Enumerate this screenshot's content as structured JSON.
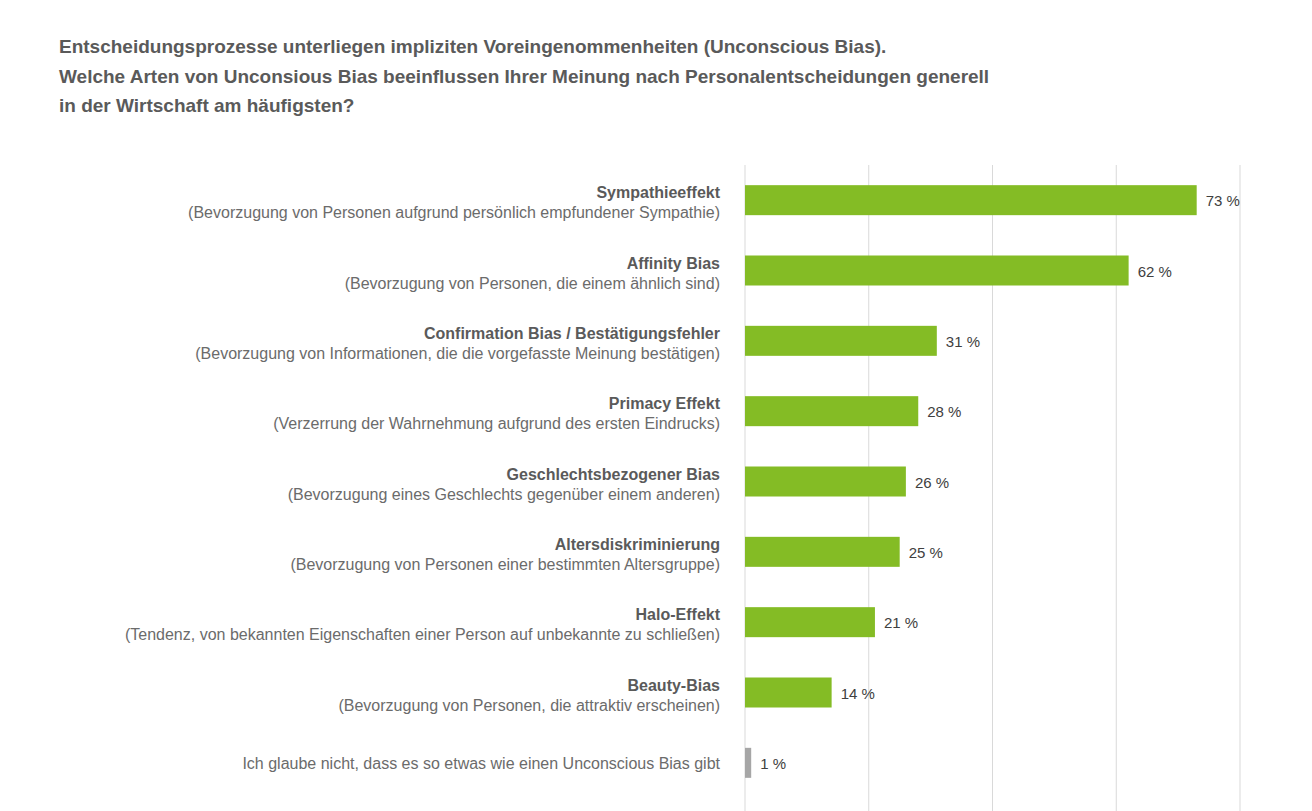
{
  "chart_data": {
    "type": "bar",
    "orientation": "horizontal",
    "title": "Entscheidungsprozesse unterliegen impliziten Voreingenommenheiten (Unconscious Bias).\nWelche Arten von Unconsious Bias beeinflussen Ihrer Meinung nach Personalentscheidungen generell\nin der Wirtschaft am häufigsten?",
    "categories": [
      "Sympathieeffekt\n(Bevorzugung von Personen aufgrund persönlich empfundener Sympathie)",
      "Affinity Bias\n(Bevorzugung von Personen, die einem ähnlich sind)",
      "Confirmation Bias / Bestätigungsfehler\n(Bevorzugung von Informationen, die die vorgefasste Meinung bestätigen)",
      "Primacy Effekt\n(Verzerrung der Wahrnehmung aufgrund des ersten Eindrucks)",
      "Geschlechtsbezogener Bias\n(Bevorzugung eines Geschlechts gegenüber einem anderen)",
      "Altersdiskriminierung\n(Bevorzugung von Personen einer bestimmten Altersgruppe)",
      "Halo-Effekt\n(Tendenz, von bekannten Eigenschaften einer Person auf unbekannte zu schließen)",
      "Beauty-Bias\n(Bevorzugung von Personen, die attraktiv erscheinen)",
      "Ich glaube nicht, dass es so etwas wie einen Unconscious Bias gibt"
    ],
    "values": [
      73,
      62,
      31,
      28,
      26,
      25,
      21,
      14,
      1
    ],
    "value_labels": [
      "73 %",
      "62 %",
      "31 %",
      "28 %",
      "26 %",
      "25 %",
      "21 %",
      "14 %",
      "1 %"
    ],
    "colors": [
      "#84bc25",
      "#84bc25",
      "#84bc25",
      "#84bc25",
      "#84bc25",
      "#84bc25",
      "#84bc25",
      "#84bc25",
      "#a6a6a6"
    ],
    "xlim": [
      0,
      80
    ],
    "xticks": [
      0,
      20,
      40,
      60,
      80
    ],
    "grid": true,
    "tick_labels": false,
    "data_labels": true
  }
}
